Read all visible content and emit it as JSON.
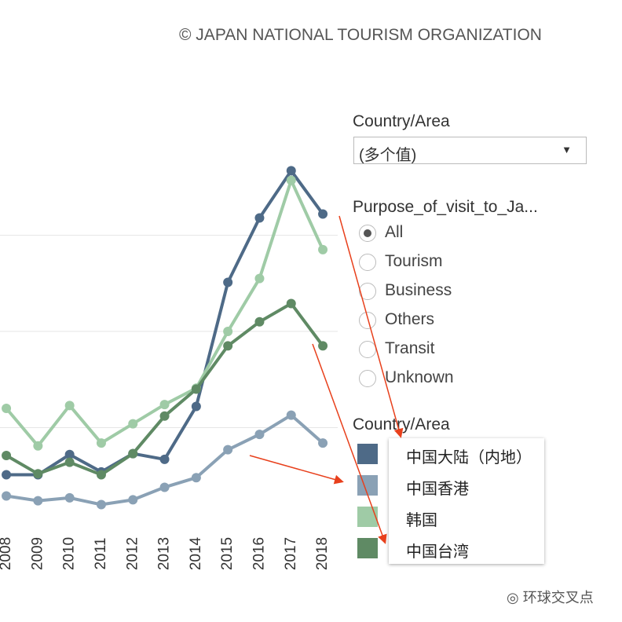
{
  "header": {
    "copyright": "© JAPAN NATIONAL TOURISM ORGANIZATION"
  },
  "filter": {
    "title": "Country/Area",
    "value": "(多个值)"
  },
  "purpose": {
    "title": "Purpose_of_visit_to_Ja...",
    "options": [
      "All",
      "Tourism",
      "Business",
      "Others",
      "Transit",
      "Unknown"
    ],
    "selected": 0
  },
  "legend_title": "Country/Area",
  "chart_data": {
    "type": "line",
    "x": [
      2008,
      2009,
      2010,
      2011,
      2012,
      2013,
      2014,
      2015,
      2016,
      2017,
      2018
    ],
    "xlim": [
      2007.8,
      2018.47
    ],
    "ylim": [
      0,
      4
    ],
    "ygrid": [
      1,
      2,
      3
    ],
    "series": [
      {
        "name": "中国大陆（内地）",
        "color": "#4e6a87",
        "values": [
          0.51,
          0.51,
          0.72,
          0.54,
          0.73,
          0.67,
          1.22,
          2.51,
          3.18,
          3.67,
          3.22
        ]
      },
      {
        "name": "中国香港",
        "color": "#8aa1b5",
        "values": [
          0.29,
          0.24,
          0.27,
          0.2,
          0.25,
          0.38,
          0.48,
          0.77,
          0.93,
          1.13,
          0.84
        ]
      },
      {
        "name": "韩国",
        "color": "#9fcba6",
        "values": [
          1.2,
          0.81,
          1.23,
          0.84,
          1.04,
          1.24,
          1.41,
          2.0,
          2.55,
          3.57,
          2.85
        ]
      },
      {
        "name": "中国台湾",
        "color": "#5f8a64",
        "values": [
          0.71,
          0.52,
          0.64,
          0.51,
          0.73,
          1.12,
          1.4,
          1.85,
          2.1,
          2.29,
          1.85
        ]
      }
    ]
  },
  "watermark": "环球交叉点"
}
